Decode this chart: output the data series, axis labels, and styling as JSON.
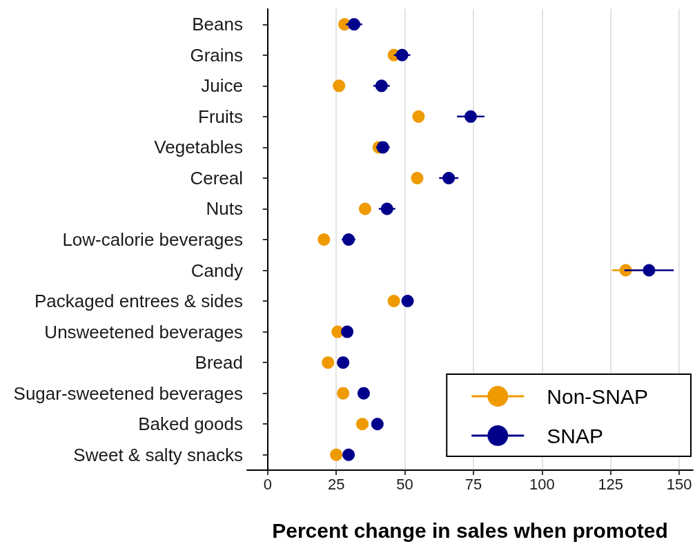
{
  "chart_data": {
    "type": "scatter",
    "orientation": "horizontal",
    "xlabel": "Percent change in sales when promoted",
    "categories": [
      "Beans",
      "Grains",
      "Juice",
      "Fruits",
      "Vegetables",
      "Cereal",
      "Nuts",
      "Low-calorie beverages",
      "Candy",
      "Packaged entrees & sides",
      "Unsweetened beverages",
      "Bread",
      "Sugar-sweetened beverages",
      "Baked goods",
      "Sweet & salty snacks"
    ],
    "series": [
      {
        "name": "Non-SNAP",
        "color": "#ee9a00",
        "values": [
          28,
          46,
          26,
          55,
          40.5,
          54.5,
          35.5,
          20.5,
          130.5,
          46,
          25.5,
          22,
          27.5,
          34.5,
          25
        ],
        "errors": [
          null,
          null,
          null,
          null,
          null,
          null,
          null,
          null,
          5,
          null,
          null,
          null,
          null,
          null,
          null
        ]
      },
      {
        "name": "SNAP",
        "color": "#00008b",
        "values": [
          31.5,
          49,
          41.5,
          74,
          42,
          66,
          43.5,
          29.5,
          139,
          51,
          29,
          27.5,
          35,
          40,
          29.5
        ],
        "errors": [
          3,
          3,
          3,
          5,
          2.5,
          3.5,
          3,
          2.5,
          9,
          null,
          null,
          null,
          null,
          null,
          null
        ]
      }
    ],
    "xlim": [
      -7.5,
      155
    ],
    "xticks": [
      0,
      25,
      50,
      75,
      100,
      125,
      150
    ],
    "grid": "x",
    "legend": "bottom right",
    "marker": "circle"
  }
}
